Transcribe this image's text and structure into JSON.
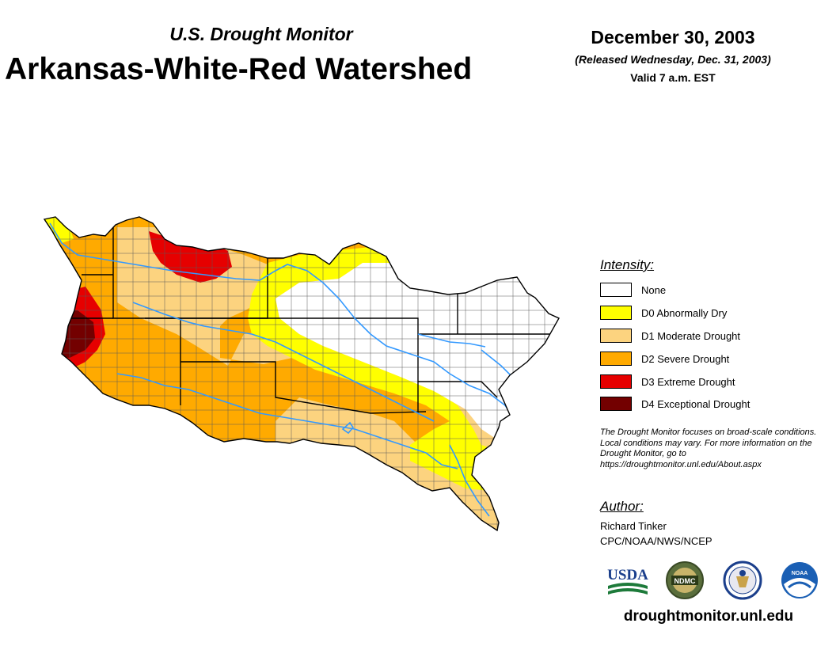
{
  "header": {
    "subtitle": "U.S. Drought Monitor",
    "title": "Arkansas-White-Red Watershed",
    "date": "December 30, 2003",
    "released": "(Released Wednesday, Dec. 31, 2003)",
    "valid": "Valid 7 a.m. EST"
  },
  "legend": {
    "title": "Intensity:",
    "items": [
      {
        "label": "None",
        "color": "#ffffff"
      },
      {
        "label": "D0 Abnormally Dry",
        "color": "#ffff00"
      },
      {
        "label": "D1 Moderate Drought",
        "color": "#fcd37f"
      },
      {
        "label": "D2 Severe Drought",
        "color": "#ffaa00"
      },
      {
        "label": "D3 Extreme Drought",
        "color": "#e60000"
      },
      {
        "label": "D4 Exceptional Drought",
        "color": "#730000"
      }
    ]
  },
  "note": "The Drought Monitor focuses on broad-scale conditions. Local conditions may vary. For more information on the Drought Monitor, go to https://droughtmonitor.unl.edu/About.aspx",
  "author": {
    "title": "Author:",
    "name": "Richard Tinker",
    "org": "CPC/NOAA/NWS/NCEP"
  },
  "logos": {
    "usda": "USDA",
    "ndmc": "NDMC",
    "noaa": "NOAA"
  },
  "footer": {
    "site": "droughtmonitor.unl.edu"
  },
  "colors": {
    "river": "#3399ff",
    "border": "#000000"
  }
}
